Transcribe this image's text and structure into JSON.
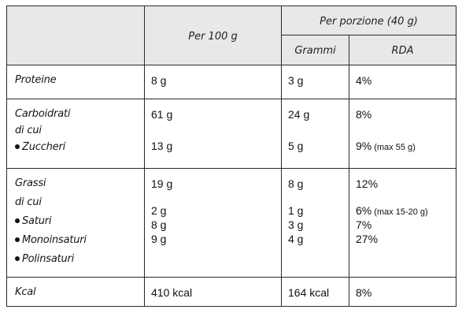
{
  "header": {
    "per100": "Per 100 g",
    "perPortion": "Per porzione (40 g)",
    "grams": "Grammi",
    "rda": "RDA"
  },
  "rows": {
    "proteine": {
      "label": "Proteine",
      "per100": "8 g",
      "grams": "3 g",
      "rda": "4%"
    },
    "carboidrati": {
      "label": "Carboidrati",
      "sublabel": "di cui",
      "per100": "61 g",
      "grams": "24 g",
      "rda": "8%",
      "zuccheri": {
        "label": "Zuccheri",
        "per100": "13 g",
        "grams": "5 g",
        "rda": "9%",
        "note": "(max 55 g)"
      }
    },
    "grassi": {
      "label": "Grassi",
      "sublabel": "di cui",
      "per100": "19 g",
      "grams": "8 g",
      "rda": "12%",
      "saturi": {
        "label": "Saturi",
        "per100": "2 g",
        "grams": "1 g",
        "rda": "6%",
        "note": "(max 15-20 g)"
      },
      "monoinsaturi": {
        "label": "Monoinsaturi",
        "per100": "8 g",
        "grams": "3 g",
        "rda": "7%"
      },
      "polinsaturi": {
        "label": "Polinsaturi",
        "per100": "9 g",
        "grams": "4 g",
        "rda": "27%"
      }
    },
    "kcal": {
      "label": "Kcal",
      "per100": "410 kcal",
      "grams": "164 kcal",
      "rda": "8%"
    }
  }
}
